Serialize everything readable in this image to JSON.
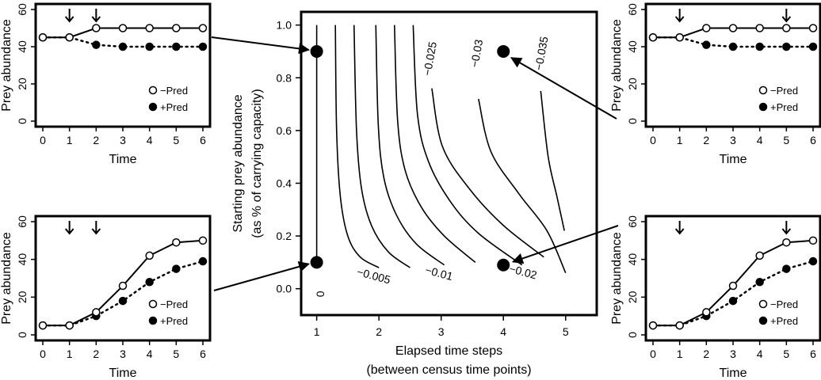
{
  "chart_data": [
    {
      "panel": "top-left",
      "type": "line",
      "xlabel": "Time",
      "ylabel": "Prey abundance",
      "xlim": [
        0,
        6
      ],
      "ylim": [
        0,
        60
      ],
      "xticks": [
        "0",
        "1",
        "2",
        "3",
        "4",
        "5",
        "6"
      ],
      "yticks": [
        "0",
        "20",
        "40",
        "60"
      ],
      "arrows_at": [
        1,
        2
      ],
      "x": [
        0,
        1,
        2,
        3,
        4,
        5,
        6
      ],
      "series": [
        {
          "name": "−Pred",
          "marker": "open",
          "line": "solid",
          "values": [
            45,
            45,
            50,
            50,
            50,
            50,
            50
          ]
        },
        {
          "name": "+Pred",
          "marker": "filled",
          "line": "dotted",
          "values": [
            45,
            45,
            41,
            40,
            40,
            40,
            40
          ]
        }
      ],
      "legend": "bottom-right"
    },
    {
      "panel": "bottom-left",
      "type": "line",
      "xlabel": "Time",
      "ylabel": "Prey abundance",
      "xlim": [
        0,
        6
      ],
      "ylim": [
        0,
        60
      ],
      "xticks": [
        "0",
        "1",
        "2",
        "3",
        "4",
        "5",
        "6"
      ],
      "yticks": [
        "0",
        "20",
        "40",
        "60"
      ],
      "arrows_at": [
        1,
        2
      ],
      "x": [
        0,
        1,
        2,
        3,
        4,
        5,
        6
      ],
      "series": [
        {
          "name": "−Pred",
          "marker": "open",
          "line": "solid",
          "values": [
            5,
            5,
            12,
            26,
            42,
            49,
            50
          ]
        },
        {
          "name": "+Pred",
          "marker": "filled",
          "line": "dotted",
          "values": [
            5,
            5,
            10,
            18,
            28,
            35,
            39
          ]
        }
      ],
      "legend": "bottom-right"
    },
    {
      "panel": "top-right",
      "type": "line",
      "xlabel": "Time",
      "ylabel": "Prey abundance",
      "xlim": [
        0,
        6
      ],
      "ylim": [
        0,
        60
      ],
      "xticks": [
        "0",
        "1",
        "2",
        "3",
        "4",
        "5",
        "6"
      ],
      "yticks": [
        "0",
        "20",
        "40",
        "60"
      ],
      "arrows_at": [
        1,
        5
      ],
      "x": [
        0,
        1,
        2,
        3,
        4,
        5,
        6
      ],
      "series": [
        {
          "name": "−Pred",
          "marker": "open",
          "line": "solid",
          "values": [
            45,
            45,
            50,
            50,
            50,
            50,
            50
          ]
        },
        {
          "name": "+Pred",
          "marker": "filled",
          "line": "dotted",
          "values": [
            45,
            45,
            41,
            40,
            40,
            40,
            40
          ]
        }
      ],
      "legend": "bottom-right"
    },
    {
      "panel": "bottom-right",
      "type": "line",
      "xlabel": "Time",
      "ylabel": "Prey abundance",
      "xlim": [
        0,
        6
      ],
      "ylim": [
        0,
        60
      ],
      "xticks": [
        "0",
        "1",
        "2",
        "3",
        "4",
        "5",
        "6"
      ],
      "yticks": [
        "0",
        "20",
        "40",
        "60"
      ],
      "arrows_at": [
        1,
        5
      ],
      "x": [
        0,
        1,
        2,
        3,
        4,
        5,
        6
      ],
      "series": [
        {
          "name": "−Pred",
          "marker": "open",
          "line": "solid",
          "values": [
            5,
            5,
            12,
            26,
            42,
            49,
            50
          ]
        },
        {
          "name": "+Pred",
          "marker": "filled",
          "line": "dotted",
          "values": [
            5,
            5,
            10,
            18,
            28,
            35,
            39
          ]
        }
      ],
      "legend": "bottom-right"
    },
    {
      "panel": "center",
      "type": "contour",
      "xlabel": "Elapsed time steps",
      "xlabel2": "(between census time points)",
      "ylabel": "Starting prey abundance",
      "ylabel2": "(as % of carrying capacity)",
      "xlim": [
        0.75,
        5.5
      ],
      "ylim": [
        -0.1,
        1.05
      ],
      "xticks": [
        "1",
        "2",
        "3",
        "4",
        "5"
      ],
      "yticks": [
        "0.0",
        "0.2",
        "0.4",
        "0.6",
        "0.8",
        "1.0"
      ],
      "contours": [
        {
          "label": "0",
          "points": [
            [
              1,
              1.0
            ],
            [
              1,
              0.1
            ]
          ]
        },
        {
          "label": "−0.005",
          "points": [
            [
              1.3,
              1.0
            ],
            [
              1.32,
              0.6
            ],
            [
              1.38,
              0.35
            ],
            [
              1.5,
              0.2
            ],
            [
              1.7,
              0.12
            ],
            [
              2.0,
              0.08
            ]
          ]
        },
        {
          "label": "",
          "points": [
            [
              1.6,
              1.0
            ],
            [
              1.64,
              0.6
            ],
            [
              1.72,
              0.38
            ],
            [
              1.88,
              0.24
            ],
            [
              2.15,
              0.14
            ],
            [
              2.5,
              0.08
            ]
          ]
        },
        {
          "label": "−0.01",
          "points": [
            [
              1.95,
              1.0
            ],
            [
              1.99,
              0.62
            ],
            [
              2.08,
              0.42
            ],
            [
              2.28,
              0.28
            ],
            [
              2.6,
              0.17
            ],
            [
              3.05,
              0.09
            ]
          ]
        },
        {
          "label": "",
          "points": [
            [
              2.25,
              1.0
            ],
            [
              2.3,
              0.64
            ],
            [
              2.42,
              0.45
            ],
            [
              2.68,
              0.31
            ],
            [
              3.05,
              0.2
            ],
            [
              3.55,
              0.1
            ]
          ]
        },
        {
          "label": "−0.02",
          "points": [
            [
              2.55,
              1.0
            ],
            [
              2.62,
              0.66
            ],
            [
              2.8,
              0.48
            ],
            [
              3.15,
              0.33
            ],
            [
              3.6,
              0.21
            ],
            [
              4.3,
              0.09
            ]
          ]
        },
        {
          "label": "−0.025",
          "points": [
            [
              2.85,
              0.76
            ],
            [
              3.02,
              0.54
            ],
            [
              3.45,
              0.38
            ],
            [
              4.0,
              0.24
            ],
            [
              4.65,
              0.12
            ]
          ]
        },
        {
          "label": "−0.03",
          "points": [
            [
              3.6,
              0.72
            ],
            [
              3.8,
              0.52
            ],
            [
              4.25,
              0.36
            ],
            [
              4.7,
              0.22
            ],
            [
              5.0,
              0.06
            ]
          ]
        },
        {
          "label": "−0.035",
          "points": [
            [
              4.6,
              0.75
            ],
            [
              4.72,
              0.5
            ],
            [
              4.86,
              0.35
            ],
            [
              4.98,
              0.22
            ]
          ]
        }
      ],
      "points": [
        {
          "x": 1,
          "y": 0.9
        },
        {
          "x": 1,
          "y": 0.1
        },
        {
          "x": 4,
          "y": 0.9
        },
        {
          "x": 4,
          "y": 0.09
        }
      ]
    }
  ]
}
